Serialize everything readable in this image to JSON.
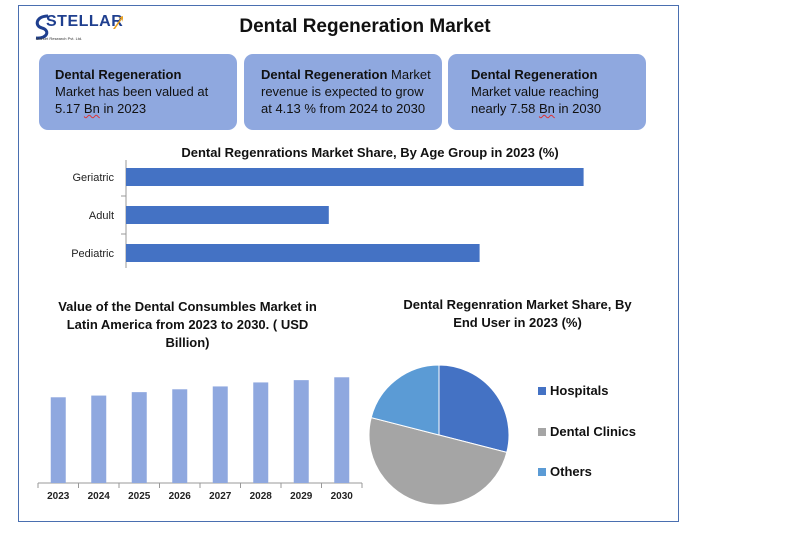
{
  "header": {
    "logo_text": "STELLAR",
    "logo_subtext": "Market Research Pvt. Ltd.",
    "title": "Dental Regeneration Market"
  },
  "cards": [
    {
      "bold": "Dental Regeneration",
      "line1": "Market has been valued at",
      "line2_pre": "5.17 ",
      "line2_u": "Bn",
      "line2_post": " in 2023"
    },
    {
      "bold": "Dental Regeneration",
      "rest1": " Market",
      "line2": "revenue is expected to grow",
      "line3": "at 4.13 % from 2024 to 2030"
    },
    {
      "bold": "Dental Regeneration",
      "line1": "Market value reaching",
      "line2_pre": "nearly 7.58 ",
      "line2_u": "Bn",
      "line2_post": " in 2030"
    }
  ],
  "colors": {
    "bar": "#4472c4",
    "column": "#8fa8df",
    "hospitals": "#4472c4",
    "dental_clinics": "#a5a5a5",
    "others": "#5b9bd5"
  },
  "chart_data": [
    {
      "type": "bar",
      "orientation": "horizontal",
      "title": "Dental Regenrations Market Share, By Age Group in 2023 (%)",
      "categories": [
        "Geriatric",
        "Adult",
        "Pediatric"
      ],
      "values": [
        44,
        19.5,
        34
      ],
      "xlim": [
        0,
        50
      ]
    },
    {
      "type": "bar",
      "title": "Value of the Dental Consumbles Market in Latin America from 2023 to 2030. ( USD Billion)",
      "categories": [
        "2023",
        "2024",
        "2025",
        "2026",
        "2027",
        "2028",
        "2029",
        "2030"
      ],
      "values": [
        3.0,
        3.06,
        3.18,
        3.28,
        3.38,
        3.52,
        3.6,
        3.7
      ],
      "ylim": [
        0,
        4.2
      ]
    },
    {
      "type": "pie",
      "title": "Dental Regenration Market Share, By End User in 2023 (%)",
      "labels": [
        "Hospitals",
        "Dental Clinics",
        "Others"
      ],
      "values": [
        29,
        50,
        21
      ],
      "legend": "right"
    }
  ]
}
